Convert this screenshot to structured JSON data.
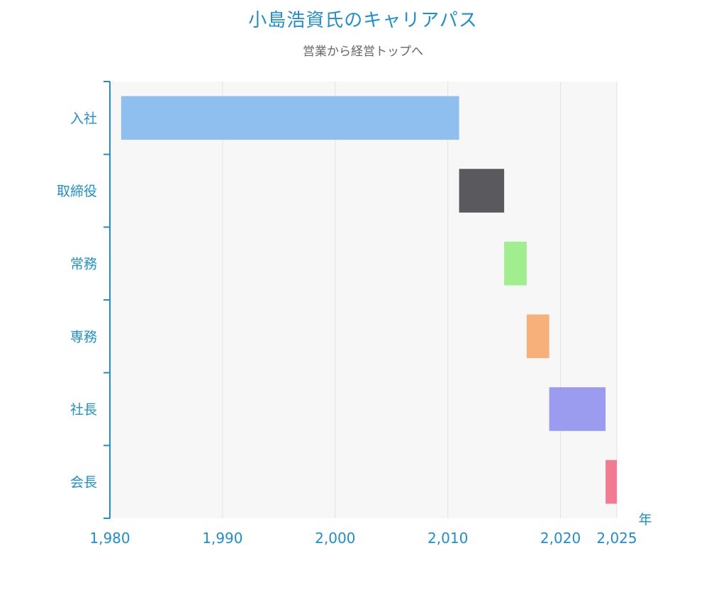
{
  "chart_data": {
    "type": "bar",
    "orientation": "horizontal-range",
    "title": "小島浩資氏のキャリアパス",
    "subtitle": "営業から経営トップへ",
    "xlabel": "年",
    "ylabel": "",
    "xlim": [
      1980,
      2025
    ],
    "x_ticks": [
      1980,
      1990,
      2000,
      2010,
      2020,
      2025
    ],
    "x_tick_labels": [
      "1,980",
      "1,990",
      "2,000",
      "2,010",
      "2,020",
      "2,025"
    ],
    "grid": true,
    "categories": [
      "入社",
      "取締役",
      "常務",
      "専務",
      "社長",
      "会長"
    ],
    "ranges": [
      {
        "category": "入社",
        "start": 1981,
        "end": 2011,
        "color": "#8fbfef"
      },
      {
        "category": "取締役",
        "start": 2011,
        "end": 2015,
        "color": "#5a5a5e"
      },
      {
        "category": "常務",
        "start": 2015,
        "end": 2017,
        "color": "#a0ee8e"
      },
      {
        "category": "専務",
        "start": 2017,
        "end": 2019,
        "color": "#f7b07a"
      },
      {
        "category": "社長",
        "start": 2019,
        "end": 2024,
        "color": "#9b9bef"
      },
      {
        "category": "会長",
        "start": 2024,
        "end": 2025,
        "color": "#f27b93"
      }
    ],
    "colors": {
      "accent": "#1f8ecf",
      "plot_background": "#f7f7f7",
      "grid": "#e3e3e3"
    }
  }
}
